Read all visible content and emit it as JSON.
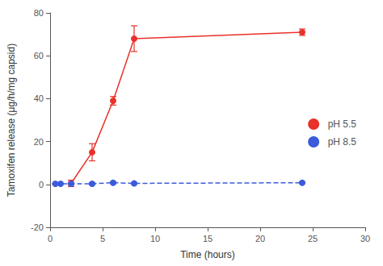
{
  "chart_data": {
    "type": "line",
    "xlabel": "Time (hours)",
    "ylabel": "Tamoxifen release (μg/h/mg capsid)",
    "xlim": [
      0,
      30
    ],
    "ylim": [
      -20,
      80
    ],
    "xticks": [
      0,
      5,
      10,
      15,
      20,
      25,
      30
    ],
    "yticks": [
      -20,
      0,
      20,
      40,
      60,
      80
    ],
    "grid": false,
    "legend": "center right",
    "series": [
      {
        "name": "pH 5.5",
        "color": "#e8312a",
        "line_style": "solid",
        "marker": "circle",
        "x": [
          2,
          4,
          6,
          8,
          24
        ],
        "values": [
          0.5,
          15,
          39,
          68,
          71
        ],
        "yerr": [
          1.5,
          4,
          2,
          6,
          1.5
        ]
      },
      {
        "name": "pH 8.5",
        "color": "#3b5bdb",
        "line_style": "dashed",
        "marker": "circle",
        "x": [
          0.5,
          1,
          2,
          4,
          6,
          8,
          24
        ],
        "values": [
          0.3,
          0.3,
          0.3,
          0.3,
          0.8,
          0.5,
          0.8
        ],
        "yerr": [
          0.2,
          0.2,
          0.2,
          0.5,
          0.4,
          0.3,
          0.3
        ]
      }
    ]
  }
}
